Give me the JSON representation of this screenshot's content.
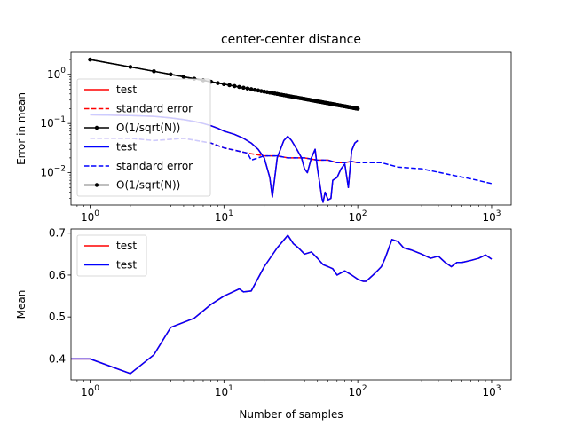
{
  "chart_data": [
    {
      "type": "line",
      "title": "center-center distance",
      "xlabel": "",
      "ylabel": "Error in mean",
      "xscale": "log",
      "yscale": "log",
      "xlim": [
        0.72,
        1400
      ],
      "ylim": [
        0.0022,
        2.8
      ],
      "xticks": [
        {
          "value": 1,
          "label": "10",
          "exp": "0"
        },
        {
          "value": 10,
          "label": "10",
          "exp": "1"
        },
        {
          "value": 100,
          "label": "10",
          "exp": "2"
        },
        {
          "value": 1000,
          "label": "10",
          "exp": "3"
        }
      ],
      "yticks": [
        {
          "value": 0.01,
          "label": "10",
          "exp": "−2"
        },
        {
          "value": 0.1,
          "label": "10",
          "exp": "−1"
        },
        {
          "value": 1,
          "label": "10",
          "exp": "0"
        }
      ],
      "legend": {
        "placement": "left"
      },
      "series": [
        {
          "name": "test",
          "color": "#ff0000",
          "style": "solid",
          "marker": "none",
          "n_max": 100,
          "x": [
            1,
            2,
            3,
            4,
            5,
            6,
            7,
            8,
            9,
            10,
            12,
            14,
            16,
            18,
            20,
            22,
            23,
            25,
            28,
            30,
            32,
            35,
            38,
            40,
            42,
            45,
            48,
            50,
            52,
            54,
            55,
            57,
            60,
            63,
            65,
            70,
            75,
            80,
            85,
            90,
            95,
            100
          ],
          "y": [
            0.15,
            0.145,
            0.14,
            0.13,
            0.12,
            0.11,
            0.1,
            0.09,
            0.08,
            0.07,
            0.06,
            0.05,
            0.04,
            0.03,
            0.02,
            0.008,
            0.0032,
            0.02,
            0.045,
            0.055,
            0.045,
            0.03,
            0.02,
            0.012,
            0.01,
            0.02,
            0.03,
            0.012,
            0.006,
            0.003,
            0.0025,
            0.004,
            0.0028,
            0.003,
            0.007,
            0.008,
            0.012,
            0.015,
            0.005,
            0.028,
            0.04,
            0.045
          ]
        },
        {
          "name": "standard error",
          "color": "#ff0000",
          "style": "dashed",
          "marker": "none",
          "n_max": 100,
          "x": [
            1,
            2,
            3,
            5,
            8,
            10,
            15,
            20,
            25,
            30,
            40,
            50,
            60,
            70,
            80,
            90,
            100
          ],
          "y": [
            0.05,
            0.05,
            0.045,
            0.05,
            0.04,
            0.032,
            0.025,
            0.022,
            0.022,
            0.02,
            0.02,
            0.018,
            0.018,
            0.016,
            0.016,
            0.017,
            0.016
          ]
        },
        {
          "name": "O(1/sqrt(N))",
          "color": "#000000",
          "style": "solid",
          "marker": "dot",
          "n_max": 100,
          "formula": "2/sqrt(N)",
          "n_points": 100
        },
        {
          "name": "test",
          "color": "#0000ff",
          "style": "solid",
          "marker": "none",
          "n_max": 100,
          "x": [
            1,
            2,
            3,
            4,
            5,
            6,
            7,
            8,
            9,
            10,
            12,
            14,
            16,
            18,
            20,
            22,
            23,
            25,
            28,
            30,
            32,
            35,
            38,
            40,
            42,
            45,
            48,
            50,
            52,
            54,
            55,
            57,
            60,
            63,
            65,
            70,
            75,
            80,
            85,
            90,
            95,
            100
          ],
          "y": [
            0.15,
            0.145,
            0.14,
            0.13,
            0.12,
            0.11,
            0.1,
            0.09,
            0.08,
            0.07,
            0.06,
            0.05,
            0.04,
            0.03,
            0.02,
            0.008,
            0.0032,
            0.02,
            0.045,
            0.055,
            0.045,
            0.03,
            0.02,
            0.012,
            0.01,
            0.02,
            0.03,
            0.012,
            0.006,
            0.003,
            0.0025,
            0.004,
            0.0028,
            0.003,
            0.007,
            0.008,
            0.012,
            0.015,
            0.005,
            0.028,
            0.04,
            0.045
          ]
        },
        {
          "name": "standard error",
          "color": "#0000ff",
          "style": "dashed",
          "marker": "none",
          "n_max": 1000,
          "x": [
            1,
            2,
            3,
            5,
            8,
            10,
            15,
            16,
            20,
            25,
            30,
            40,
            50,
            60,
            70,
            80,
            90,
            100,
            150,
            200,
            300,
            500,
            700,
            1000
          ],
          "y": [
            0.05,
            0.05,
            0.045,
            0.05,
            0.04,
            0.032,
            0.025,
            0.018,
            0.022,
            0.022,
            0.02,
            0.02,
            0.018,
            0.018,
            0.016,
            0.016,
            0.017,
            0.016,
            0.016,
            0.013,
            0.012,
            0.009,
            0.0075,
            0.006
          ]
        },
        {
          "name": "O(1/sqrt(N))",
          "color": "#000000",
          "style": "solid",
          "marker": "dot",
          "n_max": 100,
          "formula": "2/sqrt(N)",
          "n_points": 100
        }
      ]
    },
    {
      "type": "line",
      "title": "",
      "xlabel": "Number of samples",
      "ylabel": "Mean",
      "xscale": "log",
      "yscale": "linear",
      "xlim": [
        0.72,
        1400
      ],
      "ylim": [
        0.35,
        0.71
      ],
      "xticks": [
        {
          "value": 1,
          "label": "10",
          "exp": "0"
        },
        {
          "value": 10,
          "label": "10",
          "exp": "1"
        },
        {
          "value": 100,
          "label": "10",
          "exp": "2"
        },
        {
          "value": 1000,
          "label": "10",
          "exp": "3"
        }
      ],
      "yticks": [
        {
          "value": 0.4,
          "label": "0.4"
        },
        {
          "value": 0.5,
          "label": "0.5"
        },
        {
          "value": 0.6,
          "label": "0.6"
        },
        {
          "value": 0.7,
          "label": "0.7"
        }
      ],
      "legend": {
        "placement": "top-left"
      },
      "series": [
        {
          "name": "test",
          "color": "#ff0000",
          "style": "solid",
          "x": [
            0.72,
            1,
            2,
            3,
            4,
            6,
            8,
            10,
            13,
            14,
            16,
            20,
            25,
            30,
            33,
            36,
            40,
            45,
            50,
            55,
            60,
            65,
            70,
            80,
            90,
            100,
            110,
            115,
            120,
            130,
            140,
            150,
            160,
            180,
            200,
            220,
            250,
            300,
            350,
            400,
            450,
            500,
            550,
            600,
            700,
            800,
            900,
            1000
          ],
          "y": [
            0.4,
            0.4,
            0.365,
            0.41,
            0.475,
            0.497,
            0.53,
            0.55,
            0.567,
            0.56,
            0.562,
            0.62,
            0.665,
            0.695,
            0.675,
            0.665,
            0.65,
            0.655,
            0.64,
            0.625,
            0.62,
            0.615,
            0.6,
            0.61,
            0.6,
            0.59,
            0.585,
            0.585,
            0.59,
            0.6,
            0.61,
            0.62,
            0.64,
            0.685,
            0.68,
            0.665,
            0.66,
            0.65,
            0.64,
            0.645,
            0.63,
            0.62,
            0.63,
            0.63,
            0.635,
            0.64,
            0.648,
            0.638
          ]
        },
        {
          "name": "test",
          "color": "#0000ff",
          "style": "solid",
          "x": [
            0.72,
            1,
            2,
            3,
            4,
            6,
            8,
            10,
            13,
            14,
            16,
            20,
            25,
            30,
            33,
            36,
            40,
            45,
            50,
            55,
            60,
            65,
            70,
            80,
            90,
            100,
            110,
            115,
            120,
            130,
            140,
            150,
            160,
            180,
            200,
            220,
            250,
            300,
            350,
            400,
            450,
            500,
            550,
            600,
            700,
            800,
            900,
            1000
          ],
          "y": [
            0.4,
            0.4,
            0.365,
            0.41,
            0.475,
            0.497,
            0.53,
            0.55,
            0.567,
            0.56,
            0.562,
            0.62,
            0.665,
            0.695,
            0.675,
            0.665,
            0.65,
            0.655,
            0.64,
            0.625,
            0.62,
            0.615,
            0.6,
            0.61,
            0.6,
            0.59,
            0.585,
            0.585,
            0.59,
            0.6,
            0.61,
            0.62,
            0.64,
            0.685,
            0.68,
            0.665,
            0.66,
            0.65,
            0.64,
            0.645,
            0.63,
            0.62,
            0.63,
            0.63,
            0.635,
            0.64,
            0.648,
            0.638
          ]
        }
      ]
    }
  ]
}
